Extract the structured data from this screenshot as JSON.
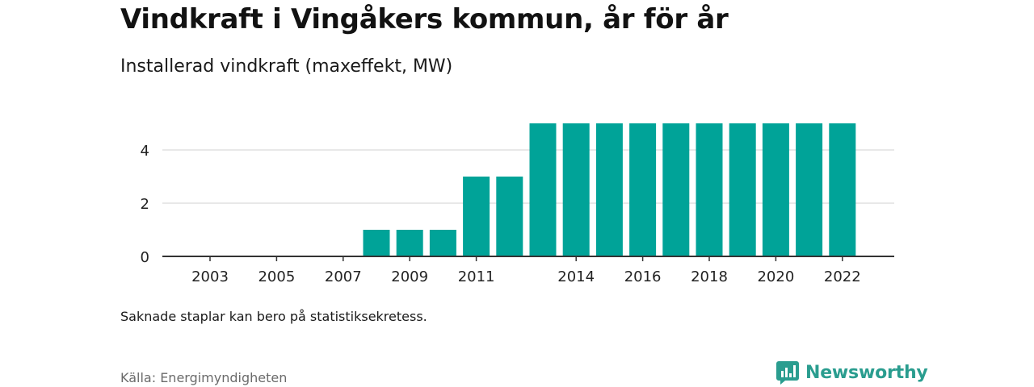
{
  "title": "Vindkraft i Vingåkers kommun, år för år",
  "subtitle": "Installerad vindkraft (maxeffekt, MW)",
  "note": "Saknade staplar kan bero på statistiksekretess.",
  "source": "Källa: Energimyndigheten",
  "brand": {
    "name": "Newsworthy",
    "icon": "newsworthy-logo-icon",
    "color": "#2a9d8f"
  },
  "colors": {
    "bar": "#00a398",
    "grid": "#d9d9d9",
    "axis": "#333333"
  },
  "chart_data": {
    "type": "bar",
    "categories": [
      2003,
      2004,
      2005,
      2006,
      2007,
      2008,
      2009,
      2010,
      2011,
      2012,
      2013,
      2014,
      2015,
      2016,
      2017,
      2018,
      2019,
      2020,
      2021,
      2022
    ],
    "values": [
      0,
      0,
      0,
      0,
      0,
      1,
      1,
      1,
      3,
      3,
      5,
      5,
      5,
      5,
      5,
      5,
      5,
      5,
      5,
      5
    ],
    "xtick_labels": [
      "2003",
      "2005",
      "2007",
      "2009",
      "2011",
      "2014",
      "2016",
      "2018",
      "2020",
      "2022"
    ],
    "ytick_labels": [
      "0",
      "2",
      "4"
    ],
    "ylim": [
      0,
      5
    ],
    "grid": true,
    "legend": "none"
  }
}
